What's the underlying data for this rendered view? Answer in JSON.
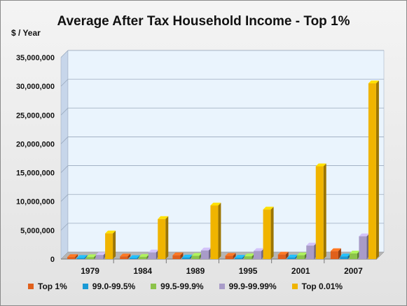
{
  "chart_data": {
    "type": "bar",
    "title": "Average After Tax Household  Income - Top 1%",
    "ylabel": "$ / Year",
    "xlabel": "",
    "categories": [
      "1979",
      "1984",
      "1989",
      "1995",
      "2001",
      "2007"
    ],
    "ylim": [
      0,
      35000000
    ],
    "yticks": [
      "0",
      "5,000,000",
      "10,000,000",
      "15,000,000",
      "20,000,000",
      "25,000,000",
      "30,000,000",
      "35,000,000"
    ],
    "ytick_values": [
      0,
      5000000,
      10000000,
      15000000,
      20000000,
      25000000,
      30000000,
      35000000
    ],
    "grid": true,
    "legend_position": "bottom",
    "series": [
      {
        "name": "Top 1%",
        "color": "#e0601c",
        "values": [
          350000,
          450000,
          650000,
          560000,
          780000,
          1380000
        ]
      },
      {
        "name": "99.0-99.5%",
        "color": "#1a9ad6",
        "values": [
          200000,
          180000,
          280000,
          230000,
          280000,
          450000
        ]
      },
      {
        "name": "99.5-99.9%",
        "color": "#8cc34a",
        "values": [
          330000,
          380000,
          560000,
          470000,
          650000,
          970000
        ]
      },
      {
        "name": "99.9-99.99%",
        "color": "#a89bc8",
        "values": [
          700000,
          1150000,
          1500000,
          1400000,
          2350000,
          3950000
        ]
      },
      {
        "name": "Top 0.01%",
        "color": "#f0b400",
        "values": [
          4450000,
          6950000,
          9300000,
          8600000,
          16100000,
          30500000
        ]
      }
    ]
  }
}
